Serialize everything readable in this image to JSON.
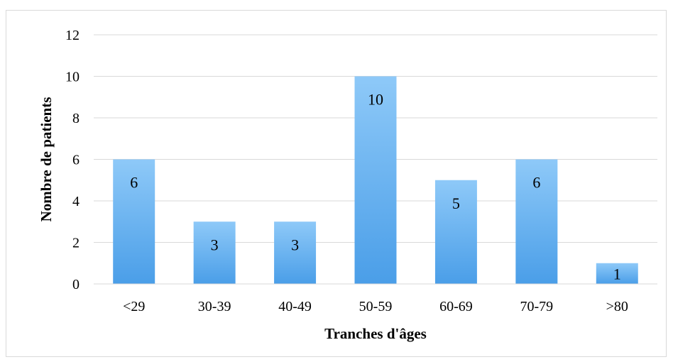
{
  "chart_data": {
    "type": "bar",
    "categories": [
      "<29",
      "30-39",
      "40-49",
      "50-59",
      "60-69",
      "70-79",
      ">80"
    ],
    "values": [
      6,
      3,
      3,
      10,
      5,
      6,
      1
    ],
    "data_labels": [
      "6",
      "3",
      "3",
      "10",
      "5",
      "6",
      "1"
    ],
    "title": "",
    "xlabel": "Tranches d'âges",
    "ylabel": "Nombre de patients",
    "ylim": [
      0,
      12
    ],
    "yticks": [
      "0",
      "2",
      "4",
      "6",
      "8",
      "10",
      "12"
    ],
    "grid": true,
    "legend": "none",
    "colors": {
      "bar_top": "#8ec9f8",
      "bar_bottom": "#4a9ee8",
      "grid": "#d9d9d9",
      "axis": "#d9d9d9",
      "frame": "#d9d9d9"
    }
  }
}
